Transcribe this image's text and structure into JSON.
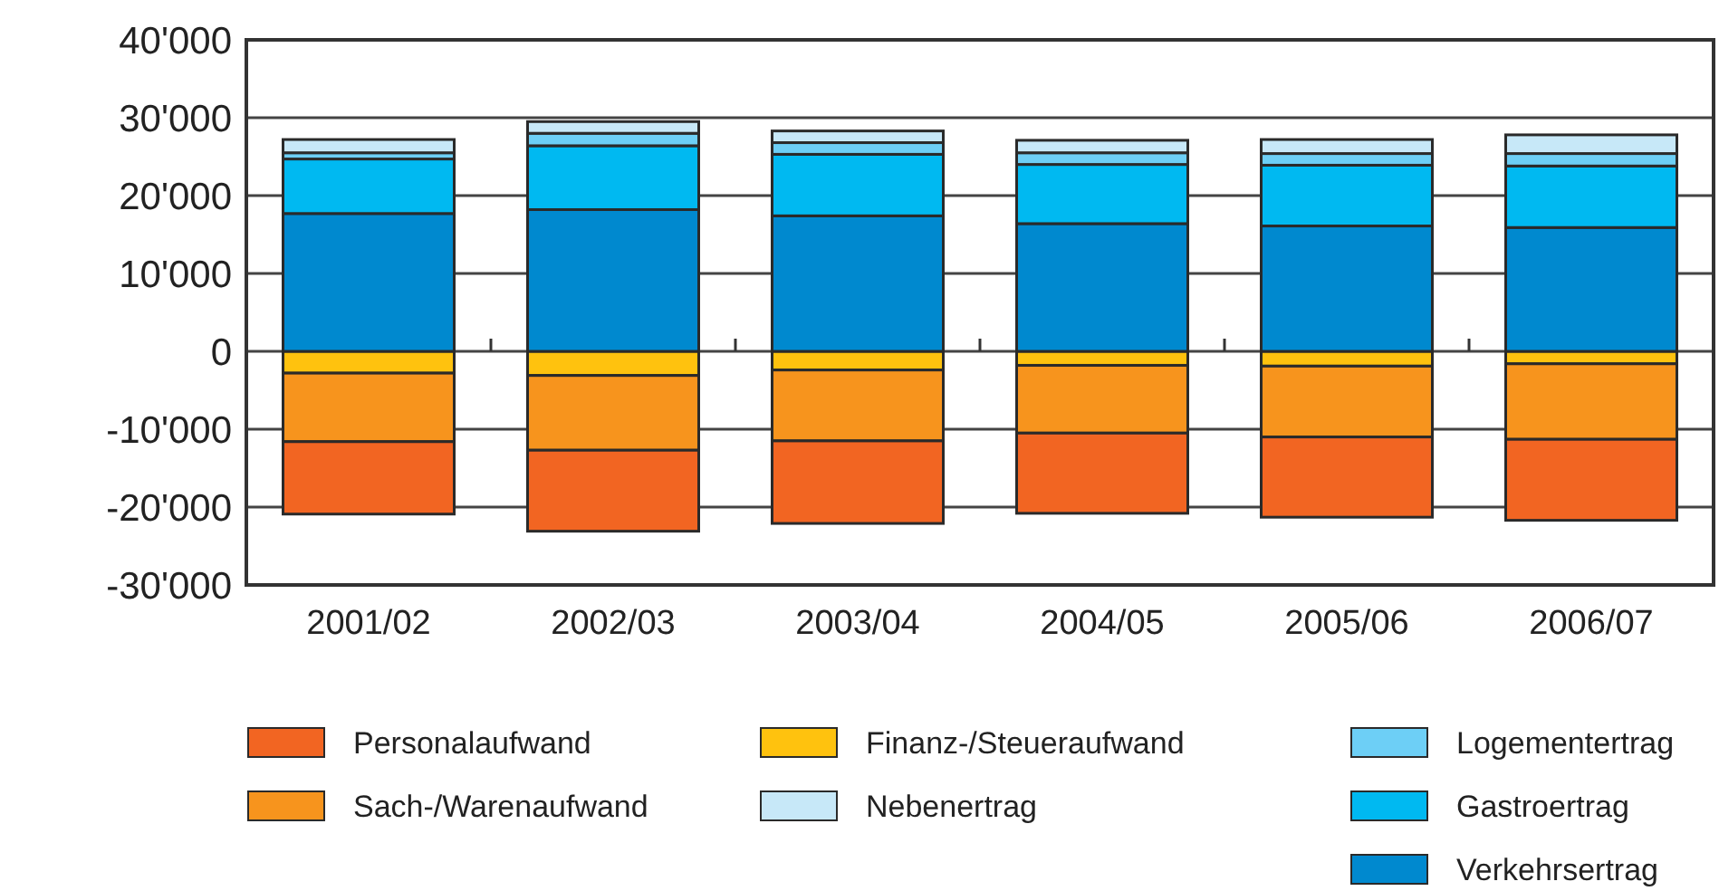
{
  "chart_data": {
    "type": "bar",
    "stacked": true,
    "categories": [
      "2001/02",
      "2002/03",
      "2003/04",
      "2004/05",
      "2005/06",
      "2006/07"
    ],
    "series": [
      {
        "name": "Finanz-/Steueraufwand",
        "color": "#ffc20e",
        "values": [
          -2800,
          -3100,
          -2400,
          -1800,
          -1900,
          -1600
        ]
      },
      {
        "name": "Sach-/Warenaufwand",
        "color": "#f7941d",
        "values": [
          -8800,
          -9600,
          -9100,
          -8700,
          -9100,
          -9700
        ]
      },
      {
        "name": "Personalaufwand",
        "color": "#f26522",
        "values": [
          -9300,
          -10400,
          -10600,
          -10300,
          -10300,
          -10400
        ]
      },
      {
        "name": "Verkehrsertrag",
        "color": "#0089cf",
        "values": [
          17700,
          18200,
          17400,
          16400,
          16100,
          15900
        ]
      },
      {
        "name": "Gastroertrag",
        "color": "#00b9f1",
        "values": [
          7000,
          8200,
          7900,
          7600,
          7800,
          7900
        ]
      },
      {
        "name": "Logementertrag",
        "color": "#6dcff6",
        "values": [
          800,
          1600,
          1500,
          1500,
          1500,
          1600
        ]
      },
      {
        "name": "Nebenertrag",
        "color": "#c7e8f8",
        "values": [
          1700,
          1500,
          1500,
          1600,
          1800,
          2400
        ]
      }
    ],
    "ylim": [
      -30000,
      40000
    ],
    "yticks": [
      {
        "value": -30000,
        "label": "-30'000"
      },
      {
        "value": -20000,
        "label": "-20'000"
      },
      {
        "value": -10000,
        "label": "-10'000"
      },
      0,
      {
        "value": 10000,
        "label": "10'000"
      },
      {
        "value": 20000,
        "label": "20'000"
      },
      {
        "value": 30000,
        "label": "30'000"
      },
      {
        "value": 40000,
        "label": "40'000"
      }
    ],
    "grid": "y",
    "legend": "bottom"
  }
}
